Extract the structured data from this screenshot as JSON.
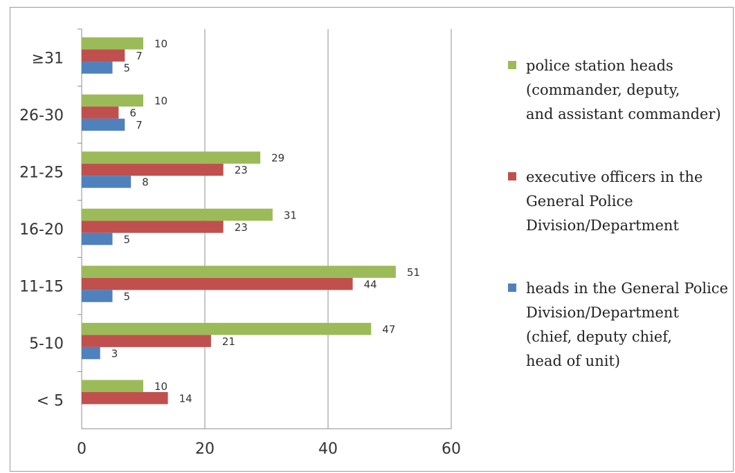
{
  "chart_data": {
    "type": "bar",
    "orientation": "horizontal",
    "categories": [
      "≥31",
      "26-30",
      "21-25",
      "16-20",
      "11-15",
      "5-10",
      "< 5"
    ],
    "series": [
      {
        "name": "police station heads\n(commander, deputy,\nand assistant commander)",
        "color": "#9bbb59",
        "values": [
          10,
          10,
          29,
          31,
          51,
          47,
          10
        ]
      },
      {
        "name": "executive officers in the\nGeneral Police\nDivision/Department",
        "color": "#c0504d",
        "values": [
          7,
          6,
          23,
          23,
          44,
          21,
          14
        ]
      },
      {
        "name": "heads in the General Police\nDivision/Department\n(chief, deputy chief,\n head of unit)",
        "color": "#4f81bd",
        "values": [
          5,
          7,
          8,
          5,
          5,
          3,
          null
        ]
      }
    ],
    "xlim": [
      0,
      60
    ],
    "xticks": [
      "0",
      "20",
      "40",
      "60"
    ],
    "grid": true,
    "legend_position": "right"
  }
}
